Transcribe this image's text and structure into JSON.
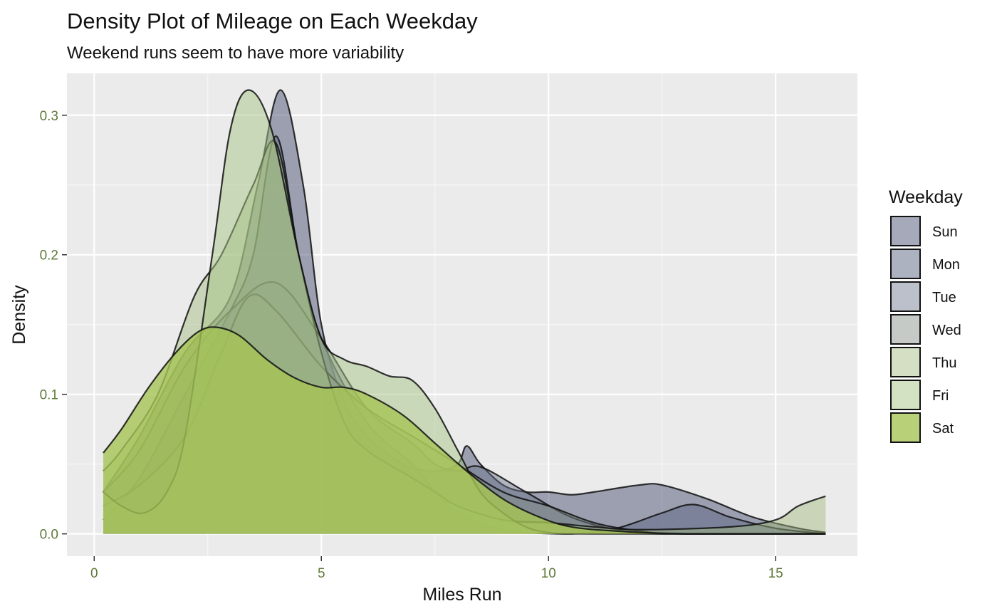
{
  "chart_data": {
    "type": "area",
    "title": "Density Plot of Mileage on Each Weekday",
    "subtitle": "Weekend runs seem to have more variability",
    "xlabel": "Miles Run",
    "ylabel": "Density",
    "xlim": [
      -0.6,
      16.8
    ],
    "ylim": [
      -0.016,
      0.33
    ],
    "xticks": [
      0,
      5,
      10,
      15
    ],
    "xtick_labels": [
      "0",
      "5",
      "10",
      "15"
    ],
    "yticks": [
      0.0,
      0.1,
      0.2,
      0.3
    ],
    "ytick_labels": [
      "0.0",
      "0.1",
      "0.2",
      "0.3"
    ],
    "grid": true,
    "legend": {
      "title": "Weekday",
      "position": "right"
    },
    "series": [
      {
        "name": "Sun",
        "color": "#4b5373",
        "opacity": 0.5,
        "points": [
          [
            0.2,
            0.03
          ],
          [
            1.0,
            0.07
          ],
          [
            2.0,
            0.13
          ],
          [
            3.0,
            0.17
          ],
          [
            3.6,
            0.25
          ],
          [
            4.1,
            0.318
          ],
          [
            4.6,
            0.25
          ],
          [
            5.0,
            0.15
          ],
          [
            5.5,
            0.095
          ],
          [
            6.0,
            0.07
          ],
          [
            6.8,
            0.05
          ],
          [
            7.5,
            0.045
          ],
          [
            8.0,
            0.05
          ],
          [
            8.2,
            0.063
          ],
          [
            8.5,
            0.05
          ],
          [
            9.0,
            0.035
          ],
          [
            9.5,
            0.03
          ],
          [
            10.0,
            0.03
          ],
          [
            10.5,
            0.028
          ],
          [
            11.0,
            0.03
          ],
          [
            12.0,
            0.035
          ],
          [
            12.5,
            0.035
          ],
          [
            13.5,
            0.025
          ],
          [
            14.5,
            0.012
          ],
          [
            15.5,
            0.004
          ],
          [
            16.1,
            0.001
          ]
        ]
      },
      {
        "name": "Mon",
        "color": "#5b6584",
        "opacity": 0.5,
        "points": [
          [
            0.2,
            0.01
          ],
          [
            1.0,
            0.04
          ],
          [
            2.0,
            0.1
          ],
          [
            3.0,
            0.16
          ],
          [
            3.5,
            0.2
          ],
          [
            4.0,
            0.285
          ],
          [
            4.5,
            0.2
          ],
          [
            5.0,
            0.14
          ],
          [
            6.0,
            0.08
          ],
          [
            7.0,
            0.05
          ],
          [
            7.5,
            0.03
          ],
          [
            8.0,
            0.015
          ],
          [
            8.7,
            0.005
          ],
          [
            9.5,
            0.001
          ],
          [
            10.5,
            0.0
          ],
          [
            11.5,
            0.004
          ],
          [
            12.5,
            0.015
          ],
          [
            13.2,
            0.021
          ],
          [
            14.0,
            0.012
          ],
          [
            15.0,
            0.004
          ],
          [
            16.1,
            0.0
          ]
        ]
      },
      {
        "name": "Tue",
        "color": "#6a7489",
        "opacity": 0.45,
        "points": [
          [
            0.2,
            0.03
          ],
          [
            1.0,
            0.06
          ],
          [
            2.0,
            0.12
          ],
          [
            3.0,
            0.16
          ],
          [
            4.0,
            0.18
          ],
          [
            5.0,
            0.14
          ],
          [
            6.0,
            0.09
          ],
          [
            7.0,
            0.065
          ],
          [
            7.5,
            0.05
          ],
          [
            8.0,
            0.045
          ],
          [
            8.5,
            0.048
          ],
          [
            9.5,
            0.03
          ],
          [
            10.5,
            0.012
          ],
          [
            11.5,
            0.003
          ],
          [
            12.5,
            0.0
          ],
          [
            16.1,
            0.0
          ]
        ]
      },
      {
        "name": "Wed",
        "color": "#7f8a83",
        "opacity": 0.45,
        "points": [
          [
            0.2,
            0.02
          ],
          [
            1.0,
            0.035
          ],
          [
            2.0,
            0.07
          ],
          [
            2.8,
            0.13
          ],
          [
            3.4,
            0.17
          ],
          [
            4.0,
            0.16
          ],
          [
            5.0,
            0.12
          ],
          [
            6.0,
            0.09
          ],
          [
            7.0,
            0.07
          ],
          [
            7.5,
            0.06
          ],
          [
            8.0,
            0.05
          ],
          [
            9.0,
            0.03
          ],
          [
            10.0,
            0.02
          ],
          [
            11.0,
            0.008
          ],
          [
            12.0,
            0.002
          ],
          [
            13.0,
            0.0
          ],
          [
            16.1,
            0.0
          ]
        ]
      },
      {
        "name": "Thu",
        "color": "#9fb87a",
        "opacity": 0.45,
        "points": [
          [
            0.2,
            0.045
          ],
          [
            0.6,
            0.06
          ],
          [
            1.4,
            0.1
          ],
          [
            2.2,
            0.17
          ],
          [
            2.8,
            0.2
          ],
          [
            3.5,
            0.25
          ],
          [
            4.0,
            0.28
          ],
          [
            4.5,
            0.2
          ],
          [
            5.0,
            0.13
          ],
          [
            5.5,
            0.08
          ],
          [
            6.0,
            0.06
          ],
          [
            7.0,
            0.04
          ],
          [
            7.5,
            0.03
          ],
          [
            8.0,
            0.02
          ],
          [
            9.0,
            0.01
          ],
          [
            10.0,
            0.008
          ],
          [
            11.0,
            0.005
          ],
          [
            12.0,
            0.003
          ],
          [
            14.0,
            0.005
          ],
          [
            15.0,
            0.01
          ],
          [
            15.5,
            0.02
          ],
          [
            16.1,
            0.027
          ]
        ]
      },
      {
        "name": "Fri",
        "color": "#a8c685",
        "opacity": 0.5,
        "points": [
          [
            0.2,
            0.03
          ],
          [
            0.6,
            0.02
          ],
          [
            1.1,
            0.015
          ],
          [
            1.6,
            0.03
          ],
          [
            2.0,
            0.07
          ],
          [
            2.6,
            0.2
          ],
          [
            3.0,
            0.29
          ],
          [
            3.4,
            0.318
          ],
          [
            3.9,
            0.29
          ],
          [
            4.5,
            0.2
          ],
          [
            5.0,
            0.14
          ],
          [
            5.5,
            0.125
          ],
          [
            6.0,
            0.12
          ],
          [
            6.5,
            0.113
          ],
          [
            7.0,
            0.11
          ],
          [
            7.5,
            0.09
          ],
          [
            8.0,
            0.06
          ],
          [
            8.5,
            0.03
          ],
          [
            9.0,
            0.015
          ],
          [
            9.5,
            0.005
          ],
          [
            10.0,
            0.001
          ],
          [
            11.0,
            0.0
          ],
          [
            16.1,
            0.0
          ]
        ]
      },
      {
        "name": "Sat",
        "color": "#a6c455",
        "opacity": 0.8,
        "points": [
          [
            0.2,
            0.058
          ],
          [
            0.6,
            0.075
          ],
          [
            1.2,
            0.105
          ],
          [
            1.8,
            0.13
          ],
          [
            2.3,
            0.145
          ],
          [
            2.7,
            0.148
          ],
          [
            3.2,
            0.142
          ],
          [
            3.8,
            0.125
          ],
          [
            4.4,
            0.112
          ],
          [
            5.0,
            0.105
          ],
          [
            5.5,
            0.105
          ],
          [
            6.0,
            0.1
          ],
          [
            6.8,
            0.085
          ],
          [
            7.5,
            0.065
          ],
          [
            8.2,
            0.045
          ],
          [
            9.0,
            0.025
          ],
          [
            9.8,
            0.012
          ],
          [
            10.5,
            0.005
          ],
          [
            11.5,
            0.002
          ],
          [
            13.0,
            0.0
          ],
          [
            16.1,
            0.0
          ]
        ]
      }
    ]
  }
}
